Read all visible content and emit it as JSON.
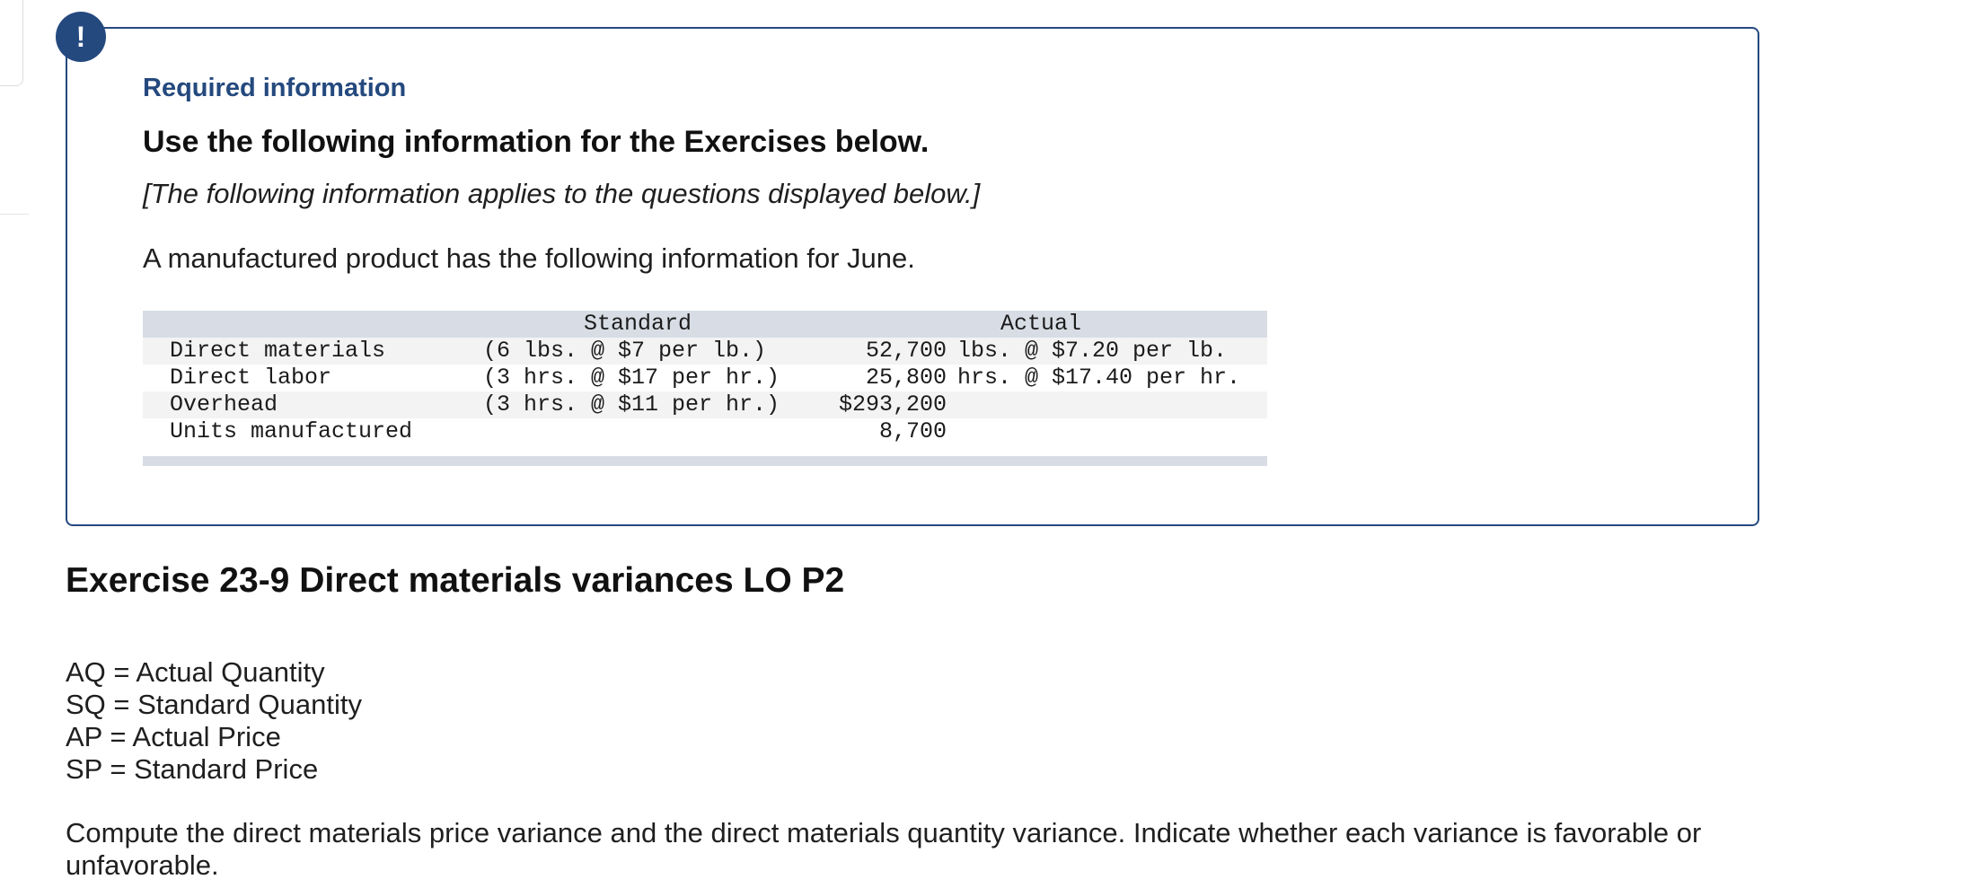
{
  "alert_icon_glyph": "!",
  "required_info": {
    "title": "Required information",
    "heading": "Use the following information for the Exercises below.",
    "applies_note": "[The following information applies to the questions displayed below.]",
    "intro": "A manufactured product has the following information for June."
  },
  "table": {
    "headers": {
      "standard": "Standard",
      "actual": "Actual"
    },
    "rows": [
      {
        "label": "Direct materials",
        "standard": "(6 lbs. @ $7 per lb.)",
        "actual_value": "52,700",
        "actual_unit": "lbs. @ $7.20 per lb."
      },
      {
        "label": "Direct labor",
        "standard": "(3 hrs. @ $17 per hr.)",
        "actual_value": "25,800",
        "actual_unit": "hrs. @ $17.40 per hr."
      },
      {
        "label": "Overhead",
        "standard": "(3 hrs. @ $11 per hr.)",
        "actual_value": "$293,200",
        "actual_unit": ""
      },
      {
        "label": "Units manufactured",
        "standard": "",
        "actual_value": "8,700",
        "actual_unit": ""
      }
    ]
  },
  "exercise": {
    "title": "Exercise 23-9 Direct materials variances LO P2",
    "abbreviations": [
      "AQ = Actual Quantity",
      "SQ = Standard Quantity",
      "AP = Actual Price",
      "SP = Standard Price"
    ],
    "instructions": "Compute the direct materials price variance and the direct materials quantity variance. Indicate whether each variance is favorable or unfavorable."
  },
  "colors": {
    "accent": "#24497e",
    "table_header_bg": "#d8dde5",
    "table_alt_bg": "#f3f3f3"
  }
}
